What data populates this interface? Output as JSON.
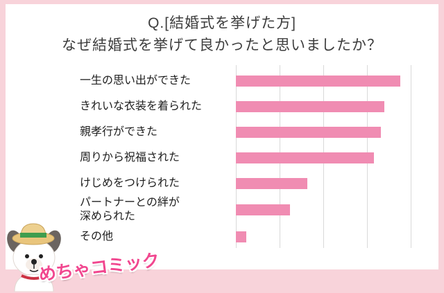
{
  "title": {
    "line1": "Q.[結婚式を挙げた方]",
    "line2": "なぜ結婚式を挙げて良かったと思いましたか？"
  },
  "chart_data": {
    "type": "bar",
    "orientation": "horizontal",
    "title": "Q.[結婚式を挙げた方] なぜ結婚式を挙げて良かったと思いましたか？",
    "categories": [
      "一生の思い出ができた",
      "きれいな衣装を着られた",
      "親孝行ができた",
      "周りから祝福された",
      "けじめをつけられた",
      "パートナーとの絆が\n深められた",
      "その他"
    ],
    "values": [
      94,
      85,
      83,
      79,
      41,
      31,
      6
    ],
    "xlim": [
      0,
      100
    ],
    "grid": true,
    "gridline_step": 25,
    "bar_color": "#f08cb2",
    "legend": "none",
    "xlabel": "",
    "ylabel": ""
  },
  "logo": {
    "text": "めちゃコミック",
    "icon": "dog-mascot-icon"
  },
  "colors": {
    "background": "#f8d3da",
    "panel": "#ffffff",
    "bar": "#f08cb2",
    "grid": "#d9d9d9",
    "title_text": "#3d3d3d",
    "label_text": "#1e1e1e",
    "logo_pink": "#f1478f"
  }
}
